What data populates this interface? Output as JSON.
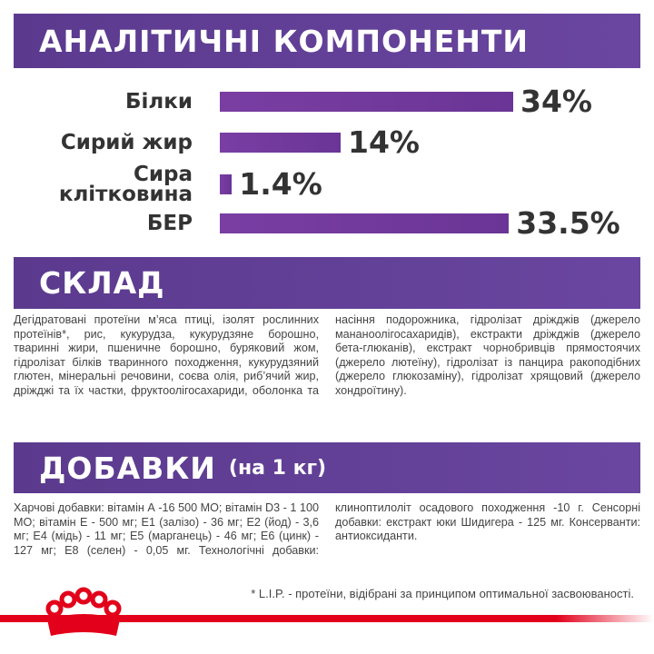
{
  "header": {
    "title": "АНАЛІТИЧНІ КОМПОНЕНТИ"
  },
  "chart_data": {
    "type": "bar",
    "orientation": "horizontal",
    "color": "#7a3ea3",
    "categories": [
      "Білки",
      "Сирий жир",
      "Сира клітковина",
      "БЕР"
    ],
    "values": [
      34,
      14,
      1.4,
      33.5
    ],
    "value_labels": [
      "34%",
      "14%",
      "1.4%",
      "33.5%"
    ]
  },
  "composition": {
    "title": "СКЛАД",
    "text": "Дегідратовані протеїни м’яса птиці, ізолят рослинних протеїнів*, рис, кукурудза, кукурудзяне борошно, тваринні жири, пшеничне борошно, буряковий жом, гідролізат білків тваринного походження, кукурудзяний глютен, мінеральні речовини, соєва олія, риб’ячий жир, дріжджі та їх частки, фруктоолігосахариди, оболонка та насіння подорожника, гідролізат дріжджів (джерело манaноолігосахаридів), екстракти дріжджів (джерело бета-глюканів), екстракт чорнобривців прямостоячих (джерело лютеїну), гідролізат із панцира ракоподібних (джерело глюкозаміну), гідролізат хрящовий (джерело хондроїтину)."
  },
  "additives": {
    "title": "ДОБАВКИ",
    "subtitle": "(на 1 кг)",
    "text": "Харчові добавки: вітамін А -16 500 МО; вітамін D3 - 1 100 МО; вітамін Е - 500 мг; Е1 (залізо) - 36 мг; Е2 (йод) - 3,6 мг; Е4 (мідь) - 11 мг; Е5 (марганець) - 46 мг; Е6 (цинк) - 127 мг; Е8 (селен) - 0,05 мг. Технологічні добавки: клиноптилоліт осадового походження -10 г. Сенсорні добавки: екстракт юки Шидигера - 125 мг. Консерванти: антиоксиданти."
  },
  "footnote": "* L.I.P. - протеїни, відібрані за принципом оптимальної засвоюваності."
}
